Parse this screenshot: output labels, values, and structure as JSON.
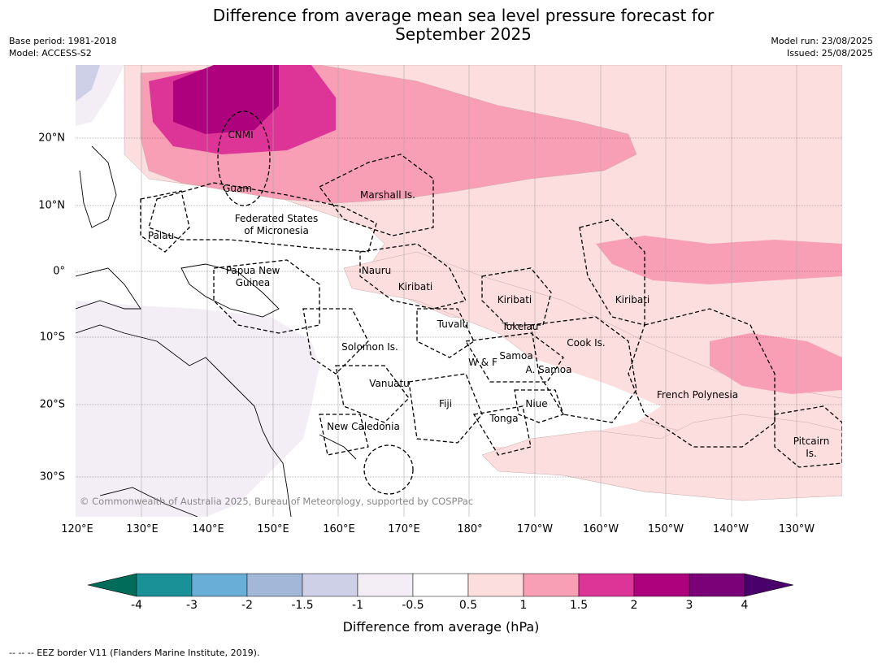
{
  "title": {
    "line1": "Difference from average mean sea level pressure forecast for",
    "line2": "September 2025"
  },
  "meta": {
    "base_period": "Base period: 1981-2018",
    "model": "Model: ACCESS-S2",
    "model_run": "Model run: 23/08/2025",
    "issued": "Issued: 25/08/2025"
  },
  "map": {
    "lat_labels": [
      "20°N",
      "10°N",
      "0°",
      "10°S",
      "20°S",
      "30°S"
    ],
    "lon_labels": [
      "120°E",
      "130°E",
      "140°E",
      "150°E",
      "160°E",
      "170°E",
      "180°",
      "170°W",
      "160°W",
      "150°W",
      "140°W",
      "130°W"
    ],
    "regions": [
      "CNMI",
      "Guam",
      "Marshall Is.",
      "Federated States",
      "of Micronesia",
      "Palau",
      "Papua New",
      "Guinea",
      "Nauru",
      "Kiribati",
      "Kiribati",
      "Kiribati",
      "Tuvalu",
      "Tokelau",
      "Cook Is.",
      "Solomon Is.",
      "W & F",
      "Samoa",
      "A. Samoa",
      "Vanuatu",
      "Fiji",
      "Niue",
      "Tonga",
      "French Polynesia",
      "New Caledonia",
      "Pitcairn",
      "Is."
    ],
    "copyright": "© Commonwealth of Australia 2025, Bureau of Meteorology, supported by COSPPac"
  },
  "colorbar": {
    "labels": [
      "-4",
      "-3",
      "-2",
      "-1.5",
      "-1",
      "-0.5",
      "0.5",
      "1",
      "1.5",
      "2",
      "3",
      "4"
    ],
    "colors": [
      "#1a9097",
      "#68aed6",
      "#a3b8d8",
      "#cdd0e6",
      "#f3eef6",
      "#ffffff",
      "#fddede",
      "#f99fb5",
      "#dd3497",
      "#ae017e",
      "#7a0177"
    ],
    "under_color": "#016c59",
    "over_color": "#49006a",
    "title": "Difference from average (hPa)"
  },
  "footer": "--  --  -- EEZ border V11 (Flanders Marine Institute, 2019)."
}
